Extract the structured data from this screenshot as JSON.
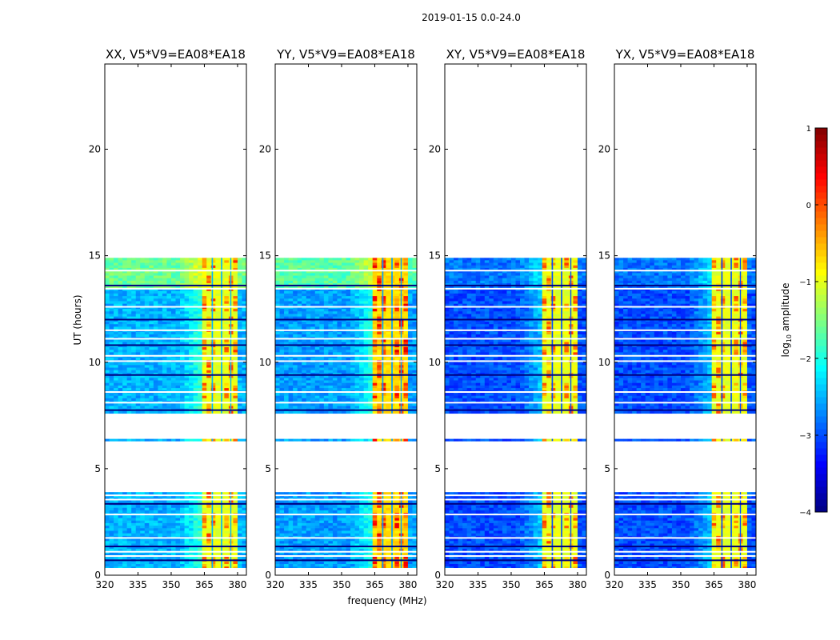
{
  "figure": {
    "suptitle": "2019-01-15 0.0-24.0",
    "xlabel": "frequency (MHz)",
    "ylabel": "UT (hours)"
  },
  "colorbar": {
    "label_prefix": "log",
    "label_sub": "10",
    "label_suffix": " amplitude",
    "ticks": [
      1,
      0,
      -1,
      -2,
      -3,
      -4
    ],
    "tick_labels": [
      "1",
      "0",
      "−1",
      "−2",
      "−3",
      "−4"
    ],
    "range": [
      -4,
      1
    ],
    "colormap": "jet"
  },
  "chart_data": [
    {
      "type": "heatmap",
      "title": "XX, V5*V9=EA08*EA18",
      "xlim": [
        320,
        384
      ],
      "ylim": [
        0,
        24
      ],
      "xticks": [
        320,
        335,
        350,
        365,
        380
      ],
      "yticks": [
        0,
        5,
        10,
        15,
        20
      ],
      "background_level": -2.5,
      "early_background_level": -1.6,
      "band_level": -1.0,
      "peak_level": 0.2
    },
    {
      "type": "heatmap",
      "title": "YY, V5*V9=EA08*EA18",
      "xlim": [
        320,
        384
      ],
      "ylim": [
        0,
        24
      ],
      "xticks": [
        320,
        335,
        350,
        365,
        380
      ],
      "yticks": [
        0,
        5,
        10,
        15,
        20
      ],
      "background_level": -2.6,
      "early_background_level": -1.7,
      "band_level": -0.7,
      "peak_level": 0.5
    },
    {
      "type": "heatmap",
      "title": "XY, V5*V9=EA08*EA18",
      "xlim": [
        320,
        384
      ],
      "ylim": [
        0,
        24
      ],
      "xticks": [
        320,
        335,
        350,
        365,
        380
      ],
      "yticks": [
        0,
        5,
        10,
        15,
        20
      ],
      "background_level": -3.0,
      "early_background_level": -2.8,
      "band_level": -1.0,
      "peak_level": 0.1
    },
    {
      "type": "heatmap",
      "title": "YX, V5*V9=EA08*EA18",
      "xlim": [
        320,
        384
      ],
      "ylim": [
        0,
        24
      ],
      "xticks": [
        320,
        335,
        350,
        365,
        380
      ],
      "yticks": [
        0,
        5,
        10,
        15,
        20
      ],
      "background_level": -3.0,
      "early_background_level": -2.8,
      "band_level": -1.0,
      "peak_level": 0.1
    }
  ],
  "observation": {
    "data_segments_ut_hours": [
      [
        0.3,
        3.9
      ],
      [
        6.3,
        6.4
      ],
      [
        7.6,
        14.9
      ]
    ],
    "early_segment_ut_hours": [
      13.4,
      14.9
    ],
    "flagged_rows_ut_hours": [
      0.3,
      0.7,
      0.9,
      1.1,
      1.35,
      1.75,
      2.85,
      3.35,
      3.55,
      3.75,
      7.75,
      8.1,
      8.6,
      9.4,
      10.05,
      10.3,
      10.8,
      11.1,
      11.5,
      12.0,
      12.6,
      13.45,
      13.6,
      14.3
    ],
    "rfi_band_mhz": [
      363.5,
      380.5
    ],
    "band_gaps_mhz": [
      [
        368.3,
        368.9
      ],
      [
        372.5,
        373.1
      ],
      [
        376.7,
        377.2
      ]
    ]
  }
}
